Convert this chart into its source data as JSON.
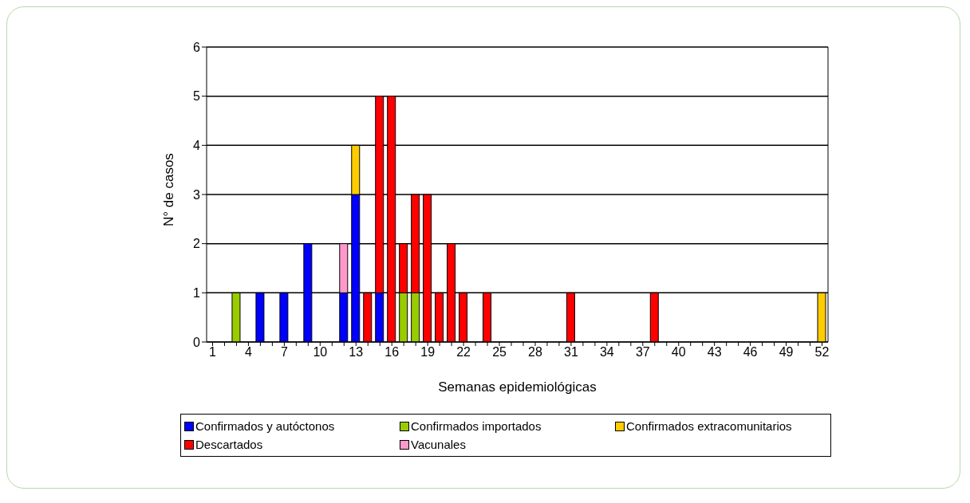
{
  "chart_data": {
    "type": "bar",
    "stacked": true,
    "xlabel": "Semanas epidemiológicas",
    "ylabel": "N° de casos",
    "categories": [
      "1",
      null,
      null,
      "4",
      null,
      null,
      "7",
      null,
      null,
      "10",
      null,
      null,
      "13",
      null,
      null,
      "16",
      null,
      null,
      "19",
      null,
      null,
      "22",
      null,
      null,
      "25",
      null,
      null,
      "28",
      null,
      null,
      "31",
      null,
      null,
      "34",
      null,
      null,
      "37",
      null,
      null,
      "40",
      null,
      null,
      "43",
      null,
      null,
      "46",
      null,
      null,
      "49",
      null,
      null,
      "52"
    ],
    "series": [
      {
        "name": "Confirmados y autóctonos",
        "color": "#0000ff",
        "values": [
          0,
          0,
          0,
          0,
          1,
          0,
          1,
          0,
          2,
          0,
          0,
          1,
          3,
          0,
          1,
          0,
          0,
          0,
          0,
          0,
          0,
          0,
          0,
          0,
          0,
          0,
          0,
          0,
          0,
          0,
          0,
          0,
          0,
          0,
          0,
          0,
          0,
          0,
          0,
          0,
          0,
          0,
          0,
          0,
          0,
          0,
          0,
          0,
          0,
          0,
          0,
          0
        ]
      },
      {
        "name": "Confirmados importados",
        "color": "#99cc00",
        "values": [
          0,
          0,
          1,
          0,
          0,
          0,
          0,
          0,
          0,
          0,
          0,
          0,
          0,
          0,
          0,
          0,
          1,
          1,
          0,
          0,
          0,
          0,
          0,
          0,
          0,
          0,
          0,
          0,
          0,
          0,
          0,
          0,
          0,
          0,
          0,
          0,
          0,
          0,
          0,
          0,
          0,
          0,
          0,
          0,
          0,
          0,
          0,
          0,
          0,
          0,
          0,
          0
        ]
      },
      {
        "name": "Confirmados extracomunitarios",
        "color": "#ffcc00",
        "values": [
          0,
          0,
          0,
          0,
          0,
          0,
          0,
          0,
          0,
          0,
          0,
          0,
          1,
          0,
          0,
          0,
          0,
          0,
          0,
          0,
          0,
          0,
          0,
          0,
          0,
          0,
          0,
          0,
          0,
          0,
          0,
          0,
          0,
          0,
          0,
          0,
          0,
          0,
          0,
          0,
          0,
          0,
          0,
          0,
          0,
          0,
          0,
          0,
          0,
          0,
          0,
          1
        ]
      },
      {
        "name": "Descartados",
        "color": "#ff0000",
        "values": [
          0,
          0,
          0,
          0,
          0,
          0,
          0,
          0,
          0,
          0,
          0,
          0,
          0,
          1,
          4,
          5,
          1,
          2,
          3,
          1,
          2,
          1,
          0,
          1,
          0,
          0,
          0,
          0,
          0,
          0,
          1,
          0,
          0,
          0,
          0,
          0,
          0,
          1,
          0,
          0,
          0,
          0,
          0,
          0,
          0,
          0,
          0,
          0,
          0,
          0,
          0,
          0
        ]
      },
      {
        "name": "Vacunales",
        "color": "#ff99cc",
        "values": [
          0,
          0,
          0,
          0,
          0,
          0,
          0,
          0,
          0,
          0,
          0,
          1,
          0,
          0,
          0,
          0,
          0,
          0,
          0,
          0,
          0,
          0,
          0,
          0,
          0,
          0,
          0,
          0,
          0,
          0,
          0,
          0,
          0,
          0,
          0,
          0,
          0,
          0,
          0,
          0,
          0,
          0,
          0,
          0,
          0,
          0,
          0,
          0,
          0,
          0,
          0,
          0
        ]
      }
    ],
    "ylim": [
      0,
      6
    ],
    "yticks": [
      0,
      1,
      2,
      3,
      4,
      5,
      6
    ],
    "grid": "y",
    "legend": "bottom"
  }
}
